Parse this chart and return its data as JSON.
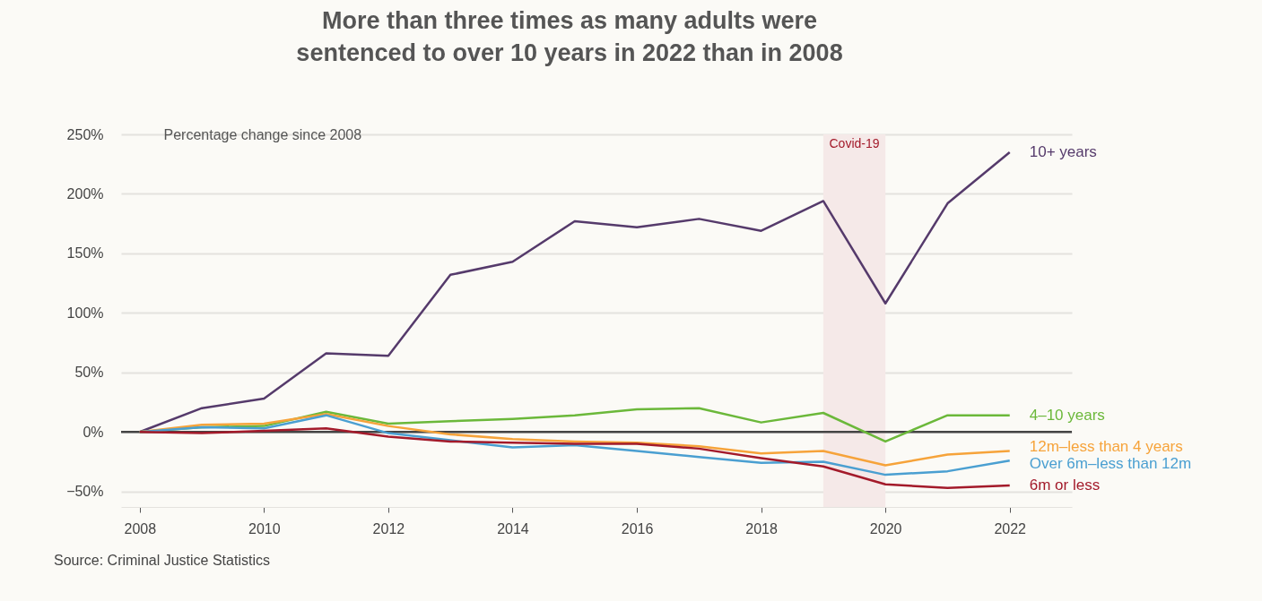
{
  "chart_data": {
    "type": "line",
    "title": "More than three times as many adults were\nsentenced to over 10 years in 2022 than in 2008",
    "ylabel": "Percentage change since 2008",
    "x": [
      2008,
      2009,
      2010,
      2011,
      2012,
      2013,
      2014,
      2015,
      2016,
      2017,
      2018,
      2019,
      2020,
      2021,
      2022
    ],
    "series": [
      {
        "name": "10+ years",
        "color": "#553a6b",
        "values": [
          0,
          20,
          28,
          66,
          64,
          132,
          143,
          177,
          172,
          179,
          169,
          194,
          108,
          192,
          235
        ]
      },
      {
        "name": "4–10 years",
        "color": "#6bb83a",
        "values": [
          0,
          4,
          5,
          17,
          7,
          9,
          11,
          14,
          19,
          20,
          8,
          16,
          -8,
          14,
          14
        ]
      },
      {
        "name": "12m–less than 4 years",
        "color": "#f6a33a",
        "values": [
          0,
          6,
          7,
          15,
          5,
          -2,
          -6,
          -8,
          -9,
          -12,
          -18,
          -16,
          -28,
          -19,
          -16
        ]
      },
      {
        "name": "Over 6m–less than 12m",
        "color": "#4a9fd1",
        "values": [
          0,
          4,
          3,
          14,
          -1,
          -7,
          -13,
          -11,
          -16,
          -21,
          -26,
          -25,
          -36,
          -33,
          -24
        ]
      },
      {
        "name": "6m or less",
        "color": "#a31a2a",
        "values": [
          0,
          -1,
          1,
          3,
          -4,
          -8,
          -9,
          -10,
          -10,
          -14,
          -22,
          -29,
          -44,
          -47,
          -45
        ]
      }
    ],
    "xlim": [
      2007.7,
      2023
    ],
    "xticks": [
      2008,
      2010,
      2012,
      2014,
      2016,
      2018,
      2020,
      2022
    ],
    "ylim": [
      -63,
      250
    ],
    "yticks": [
      {
        "value": -50,
        "label": "−50%"
      },
      {
        "value": 0,
        "label": "0%"
      },
      {
        "value": 50,
        "label": "50%"
      },
      {
        "value": 100,
        "label": "100%"
      },
      {
        "value": 150,
        "label": "150%"
      },
      {
        "value": 200,
        "label": "200%"
      },
      {
        "value": 250,
        "label": "250%"
      }
    ],
    "grid": "y",
    "legend": false,
    "ref_lines": [
      {
        "axis": "y",
        "value": 0,
        "color": "#444444"
      }
    ],
    "bands": [
      {
        "axis": "x",
        "from": 2019,
        "to": 2020,
        "label": "Covid-19",
        "color": "#f5e9e8"
      }
    ],
    "annotations": [
      "Source: Criminal Justice Statistics"
    ]
  }
}
